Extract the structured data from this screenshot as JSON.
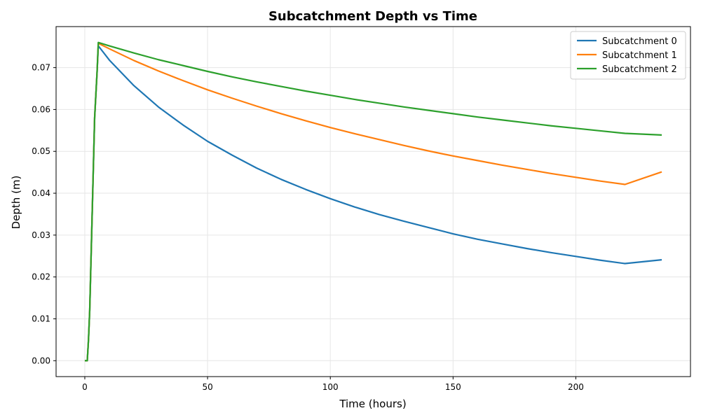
{
  "chart_data": {
    "type": "line",
    "title": "Subcatchment Depth vs Time",
    "xlabel": "Time (hours)",
    "ylabel": "Depth (m)",
    "xlim": [
      -11.7,
      246.7
    ],
    "ylim": [
      -0.0038,
      0.0798
    ],
    "xticks": [
      0,
      50,
      100,
      150,
      200
    ],
    "yticks": [
      0.0,
      0.01,
      0.02,
      0.03,
      0.04,
      0.05,
      0.06,
      0.07
    ],
    "ytick_labels": [
      "0.00",
      "0.01",
      "0.02",
      "0.03",
      "0.04",
      "0.05",
      "0.06",
      "0.07"
    ],
    "grid": true,
    "legend_position": "top-right",
    "x": [
      0,
      0.5,
      1,
      1.5,
      2,
      3,
      4,
      5,
      5.5,
      10,
      20,
      30,
      40,
      50,
      60,
      70,
      80,
      90,
      100,
      110,
      120,
      130,
      140,
      150,
      160,
      170,
      180,
      190,
      200,
      210,
      220,
      235
    ],
    "series": [
      {
        "name": "Subcatchment 0",
        "color": "#1f77b4",
        "values": [
          0.0,
          0.0,
          0.0,
          0.005,
          0.012,
          0.035,
          0.058,
          0.069,
          0.0752,
          0.0718,
          0.0657,
          0.0606,
          0.0563,
          0.0524,
          0.0491,
          0.046,
          0.0433,
          0.0409,
          0.0387,
          0.0367,
          0.0349,
          0.0333,
          0.0318,
          0.0303,
          0.029,
          0.0279,
          0.0268,
          0.0258,
          0.0249,
          0.024,
          0.0232,
          0.0241
        ]
      },
      {
        "name": "Subcatchment 1",
        "color": "#ff7f0e",
        "values": [
          0.0,
          0.0,
          0.0,
          0.005,
          0.012,
          0.035,
          0.058,
          0.069,
          0.0758,
          0.0745,
          0.0717,
          0.0692,
          0.0669,
          0.0647,
          0.0627,
          0.0608,
          0.059,
          0.0573,
          0.0557,
          0.0542,
          0.0528,
          0.0514,
          0.0501,
          0.0489,
          0.0478,
          0.0467,
          0.0457,
          0.0447,
          0.0438,
          0.0429,
          0.0421,
          0.0451
        ]
      },
      {
        "name": "Subcatchment 2",
        "color": "#2ca02c",
        "values": [
          0.0,
          0.0,
          0.0,
          0.005,
          0.012,
          0.035,
          0.058,
          0.069,
          0.076,
          0.0752,
          0.0735,
          0.0719,
          0.0705,
          0.0691,
          0.0678,
          0.0666,
          0.0655,
          0.0644,
          0.0634,
          0.0624,
          0.0615,
          0.0606,
          0.0598,
          0.059,
          0.0582,
          0.0575,
          0.0568,
          0.0561,
          0.0555,
          0.0549,
          0.0543,
          0.0539
        ]
      }
    ]
  }
}
